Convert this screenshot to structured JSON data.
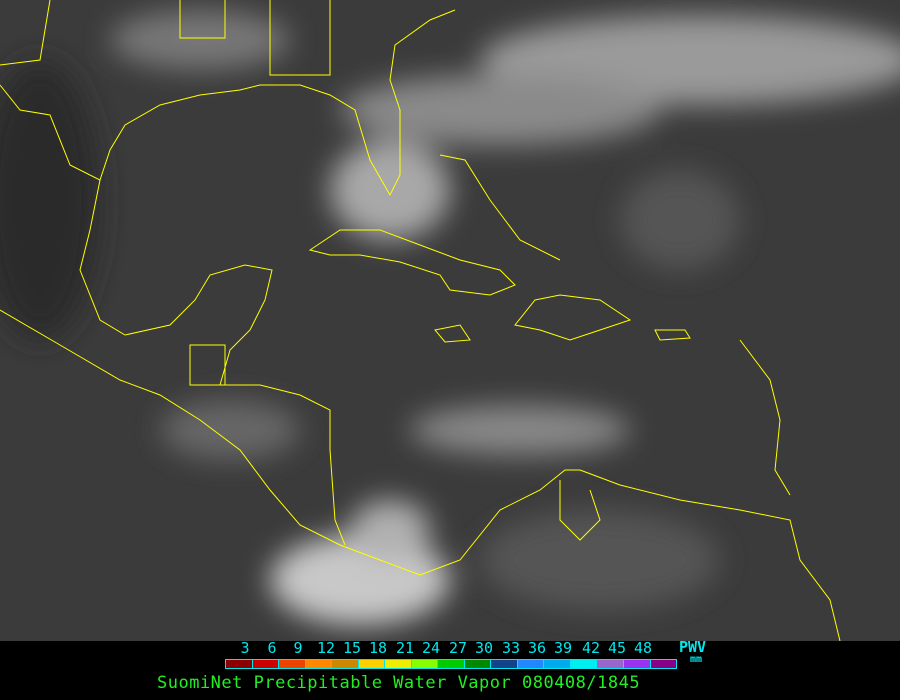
{
  "legend": {
    "ticks": [
      "3",
      "6",
      "9",
      "12",
      "15",
      "18",
      "21",
      "24",
      "27",
      "30",
      "33",
      "36",
      "39",
      "42",
      "45",
      "48"
    ],
    "unit_label": "PWV",
    "unit": "mm",
    "colors": [
      "#8b0000",
      "#cc0000",
      "#ee4400",
      "#ff8800",
      "#cc8800",
      "#ffd000",
      "#eeee00",
      "#88ff00",
      "#00cc00",
      "#008800",
      "#114488",
      "#2288ff",
      "#00aaee",
      "#00eeee",
      "#9966cc",
      "#9933ee",
      "#880088"
    ]
  },
  "title": "SuomiNet Precipitable Water Vapor 080408/1845",
  "map": {
    "coastline_color": "#ffff00",
    "background": "#3a3a3a"
  }
}
